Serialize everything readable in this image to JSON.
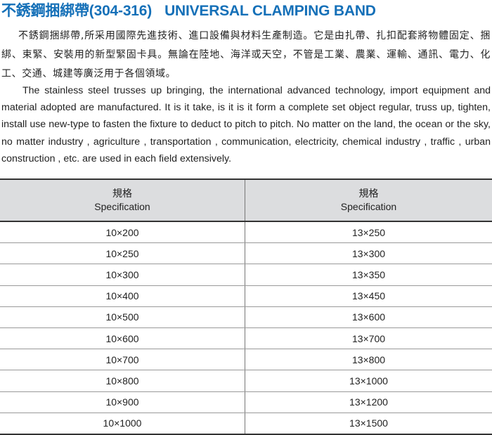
{
  "title": {
    "zh": "不銹鋼捆綁帶(304-316)",
    "en": "UNIVERSAL CLAMPING BAND",
    "color": "#1570b8"
  },
  "intro_zh": "不銹鋼捆綁帶,所采用國際先進技術、進口設備與材料生產制造。它是由扎帶、扎扣配套將物體固定、捆綁、束緊、安裝用的新型緊固卡具。無論在陸地、海洋或天空，不管是工業、農業、運輸、通訊、電力、化工、交通、城建等廣泛用于各個領域。",
  "intro_en": "The stainless steel  trusses up bringing, the international advanced technology, import equipment and material adopted are manufactured. It is it take, is it is it form a complete set object regular, truss up, tighten, install use new-type to fasten the fixture to deduct to pitch to pitch. No matter on the land, the ocean or the sky, no matter industry , agriculture , transportation , communication, electricity, chemical industry , traffic , urban construction , etc. are used in each field extensively.",
  "table": {
    "headers": [
      {
        "zh": "規格",
        "en": "Specification"
      },
      {
        "zh": "規格",
        "en": "Specification"
      }
    ],
    "rows": [
      [
        "10×200",
        "13×250"
      ],
      [
        "10×250",
        "13×300"
      ],
      [
        "10×300",
        "13×350"
      ],
      [
        "10×400",
        "13×450"
      ],
      [
        "10×500",
        "13×600"
      ],
      [
        "10×600",
        "13×700"
      ],
      [
        "10×700",
        "13×800"
      ],
      [
        "10×800",
        "13×1000"
      ],
      [
        "10×900",
        "13×1200"
      ],
      [
        "10×1000",
        "13×1500"
      ]
    ]
  }
}
